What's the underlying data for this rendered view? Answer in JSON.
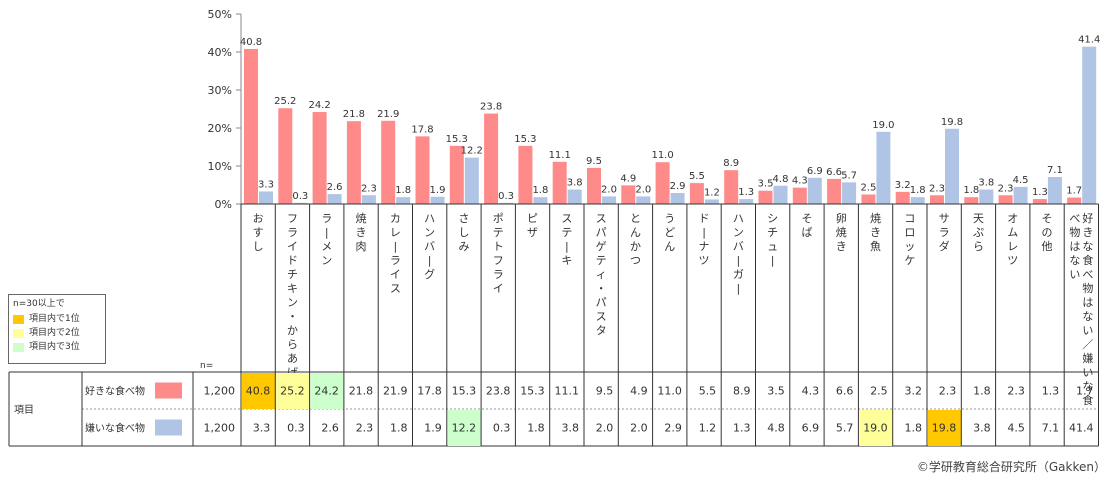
{
  "chart_data": {
    "type": "bar",
    "y_axis": {
      "ylim": [
        0,
        50
      ],
      "ticks": [
        "0%",
        "10%",
        "20%",
        "30%",
        "40%",
        "50%"
      ]
    },
    "categories": [
      "おすし",
      "フライドチキン・からあげ",
      "ラーメン",
      "焼き肉",
      "カレーライス",
      "ハンバーグ",
      "さしみ",
      "ポテトフライ",
      "ピザ",
      "ステーキ",
      "スパゲティ・パスタ",
      "とんかつ",
      "うどん",
      "ドーナツ",
      "ハンバーガー",
      "シチュー",
      "そば",
      "卵焼き",
      "焼き魚",
      "コロッケ",
      "サラダ",
      "天ぷら",
      "オムレツ",
      "その他",
      "好きな食べ物はない／嫌いな食べ物はない"
    ],
    "series": [
      {
        "name": "好きな食べ物",
        "color": "#FF8A8A",
        "n": "1,200",
        "values": [
          40.8,
          25.2,
          24.2,
          21.8,
          21.9,
          17.8,
          15.3,
          23.8,
          15.3,
          11.1,
          9.5,
          4.9,
          11.0,
          5.5,
          8.9,
          3.5,
          4.3,
          6.6,
          2.5,
          3.2,
          2.3,
          1.8,
          2.3,
          1.3,
          1.7
        ]
      },
      {
        "name": "嫌いな食べ物",
        "color": "#B0C4E6",
        "n": "1,200",
        "values": [
          3.3,
          0.3,
          2.6,
          2.3,
          1.8,
          1.9,
          12.2,
          0.3,
          1.8,
          3.8,
          2.0,
          2.0,
          2.9,
          1.2,
          1.3,
          4.8,
          6.9,
          5.7,
          19.0,
          1.8,
          19.8,
          3.8,
          4.5,
          7.1,
          41.4
        ]
      }
    ],
    "table": {
      "row_header": "項目",
      "n_header": "n=",
      "highlights": [
        {
          "series": 0,
          "index": 0,
          "rank": 1
        },
        {
          "series": 0,
          "index": 1,
          "rank": 2
        },
        {
          "series": 0,
          "index": 2,
          "rank": 3
        },
        {
          "series": 1,
          "index": 6,
          "rank": 3
        },
        {
          "series": 1,
          "index": 18,
          "rank": 2
        },
        {
          "series": 1,
          "index": 20,
          "rank": 1
        }
      ]
    }
  },
  "legend": {
    "title": "n=30以上で",
    "items": [
      {
        "label": "項目内で1位",
        "color": "#FFC800"
      },
      {
        "label": "項目内で2位",
        "color": "#FFFF99"
      },
      {
        "label": "項目内で3位",
        "color": "#CCFFCC"
      }
    ]
  },
  "credit": "©学研教育総合研究所（Gakken）"
}
